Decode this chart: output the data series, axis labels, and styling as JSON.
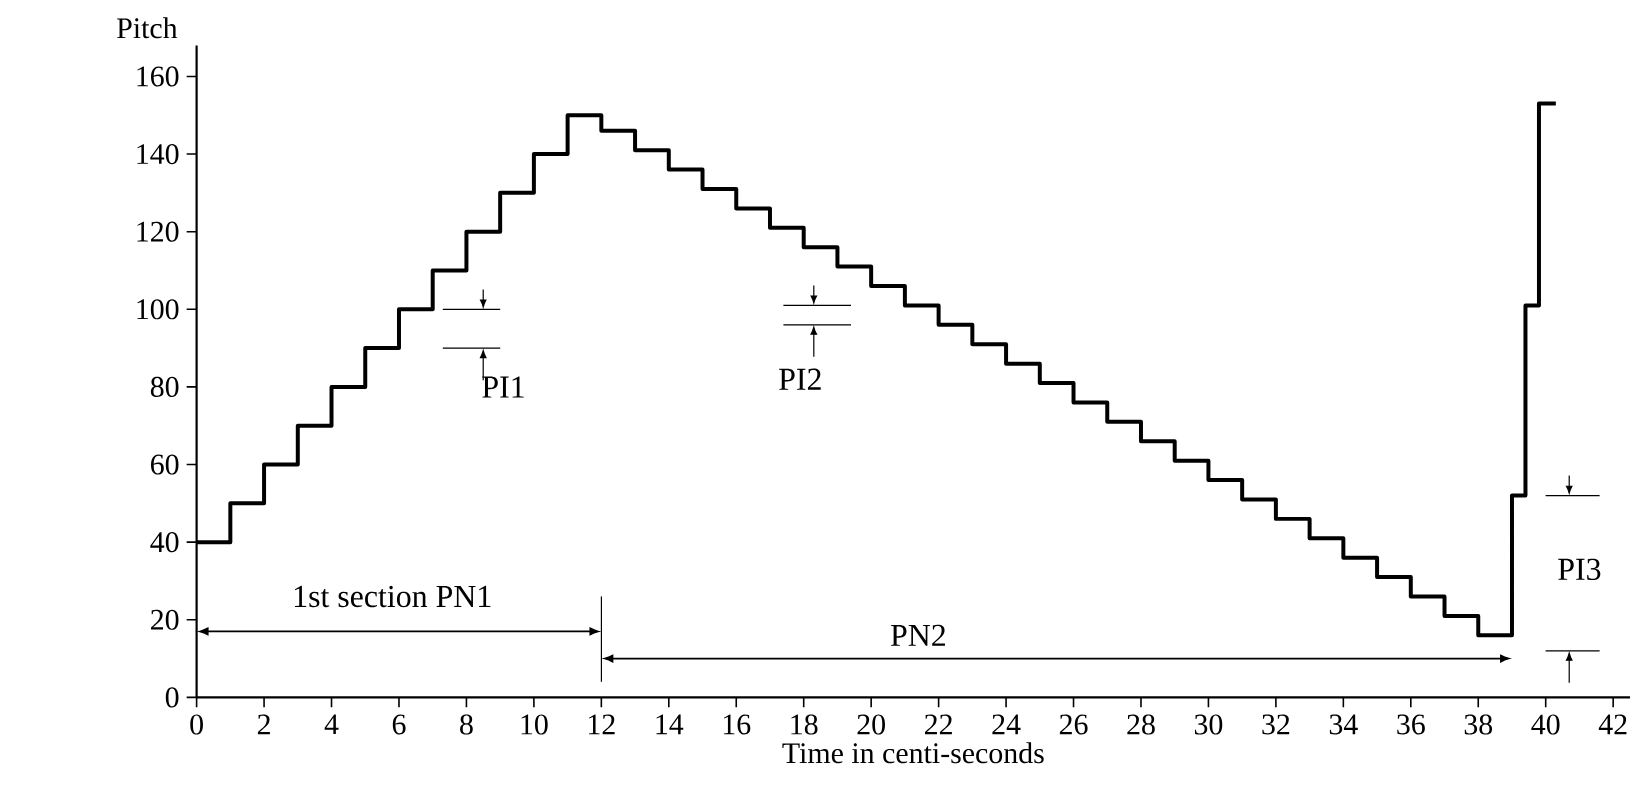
{
  "chart_data": {
    "type": "step",
    "xlabel": "Time in centi-seconds",
    "ylabel": "Pitch",
    "x": [
      0,
      1,
      2,
      3,
      4,
      5,
      6,
      7,
      8,
      9,
      10,
      11,
      12,
      13,
      14,
      15,
      16,
      17,
      18,
      19,
      20,
      21,
      22,
      23,
      24,
      25,
      26,
      27,
      28,
      29,
      30,
      31,
      32,
      33,
      34,
      35,
      36,
      37,
      38,
      39,
      39.4,
      39.8,
      40.3
    ],
    "values": [
      40,
      50,
      60,
      70,
      80,
      90,
      100,
      110,
      120,
      130,
      140,
      150,
      146,
      141,
      136,
      131,
      126,
      121,
      116,
      111,
      106,
      101,
      96,
      91,
      86,
      81,
      76,
      71,
      66,
      61,
      56,
      51,
      46,
      41,
      36,
      31,
      26,
      21,
      16,
      52,
      101,
      153,
      153
    ],
    "color": "#000000",
    "marker": "none",
    "grid": false,
    "xlim": [
      0,
      42.5
    ],
    "ylim": [
      0,
      168
    ],
    "xticks": [
      0,
      2,
      4,
      6,
      8,
      10,
      12,
      14,
      16,
      18,
      20,
      22,
      24,
      26,
      28,
      30,
      32,
      34,
      36,
      38,
      40,
      42
    ],
    "yticks": [
      0,
      20,
      40,
      60,
      80,
      100,
      120,
      140,
      160
    ],
    "annotations": [
      "PI1",
      "PI2",
      "PI3",
      "1st section  PN1",
      "PN2"
    ]
  }
}
